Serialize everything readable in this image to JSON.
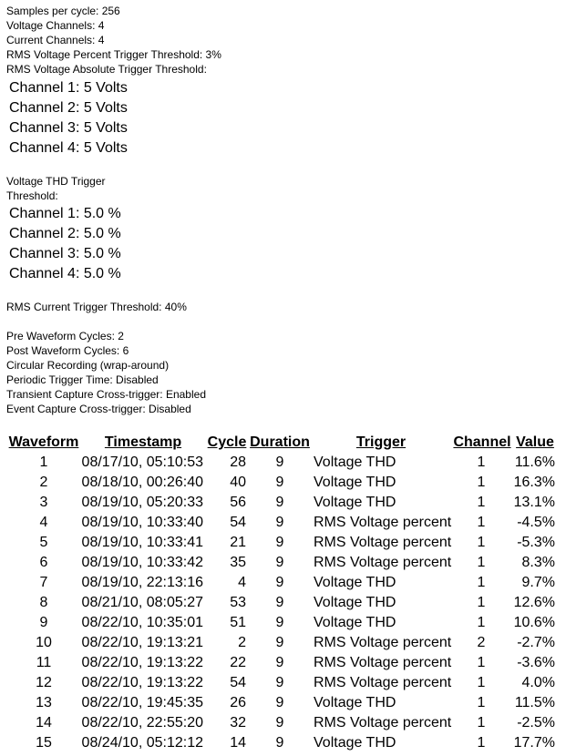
{
  "settings": [
    "Samples per cycle: 256",
    "Voltage Channels: 4",
    "Current Channels: 4",
    "RMS Voltage Percent Trigger Threshold: 3%",
    "RMS Voltage Absolute Trigger Threshold:"
  ],
  "voltage_channels": [
    "Channel 1: 5 Volts",
    "Channel 2: 5 Volts",
    "Channel 3: 5 Volts",
    "Channel 4: 5 Volts"
  ],
  "thd_title": [
    "Voltage THD Trigger",
    "Threshold:"
  ],
  "thd_channels": [
    "Channel 1: 5.0 %",
    "Channel 2: 5.0 %",
    "Channel 3: 5.0 %",
    "Channel 4: 5.0 %"
  ],
  "rms_current": "RMS Current Trigger Threshold: 40%",
  "waveform_settings": [
    "Pre Waveform Cycles: 2",
    "Post Waveform Cycles: 6",
    "Circular Recording (wrap-around)",
    "Periodic Trigger Time: Disabled",
    "Transient Capture Cross-trigger: Enabled",
    "Event Capture Cross-trigger: Disabled"
  ],
  "table": {
    "headers": [
      "Waveform",
      "Timestamp",
      "Cycle",
      "Duration",
      "Trigger",
      "Channel",
      "Value"
    ],
    "rows": [
      [
        1,
        "08/17/10, 05:10:53",
        28,
        9,
        "Voltage THD",
        1,
        "11.6%"
      ],
      [
        2,
        "08/18/10, 00:26:40",
        40,
        9,
        "Voltage THD",
        1,
        "16.3%"
      ],
      [
        3,
        "08/19/10, 05:20:33",
        56,
        9,
        "Voltage THD",
        1,
        "13.1%"
      ],
      [
        4,
        "08/19/10, 10:33:40",
        54,
        9,
        "RMS Voltage percent",
        1,
        "-4.5%"
      ],
      [
        5,
        "08/19/10, 10:33:41",
        21,
        9,
        "RMS Voltage percent",
        1,
        "-5.3%"
      ],
      [
        6,
        "08/19/10, 10:33:42",
        35,
        9,
        "RMS Voltage percent",
        1,
        "8.3%"
      ],
      [
        7,
        "08/19/10, 22:13:16",
        4,
        9,
        "Voltage THD",
        1,
        "9.7%"
      ],
      [
        8,
        "08/21/10, 08:05:27",
        53,
        9,
        "Voltage THD",
        1,
        "12.6%"
      ],
      [
        9,
        "08/22/10, 10:35:01",
        51,
        9,
        "Voltage THD",
        1,
        "10.6%"
      ],
      [
        10,
        "08/22/10, 19:13:21",
        2,
        9,
        "RMS Voltage percent",
        2,
        "-2.7%"
      ],
      [
        11,
        "08/22/10, 19:13:22",
        22,
        9,
        "RMS Voltage percent",
        1,
        "-3.6%"
      ],
      [
        12,
        "08/22/10, 19:13:22",
        54,
        9,
        "RMS Voltage percent",
        1,
        "4.0%"
      ],
      [
        13,
        "08/22/10, 19:45:35",
        26,
        9,
        "Voltage THD",
        1,
        "11.5%"
      ],
      [
        14,
        "08/22/10, 22:55:20",
        32,
        9,
        "RMS Voltage percent",
        1,
        "-2.5%"
      ],
      [
        15,
        "08/24/10, 05:12:12",
        14,
        9,
        "Voltage THD",
        1,
        "17.7%"
      ]
    ]
  }
}
